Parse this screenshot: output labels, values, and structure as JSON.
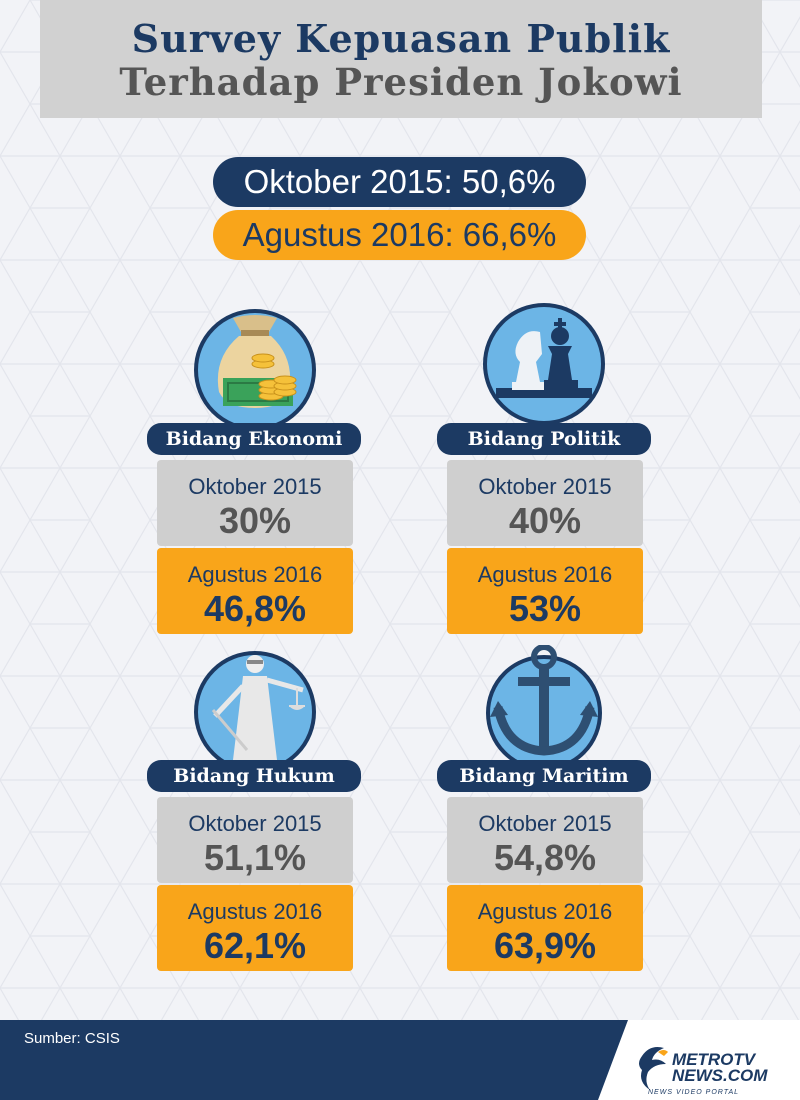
{
  "header": {
    "title_line1": "Survey Kepuasan Publik",
    "title_line2": "Terhadap Presiden Jokowi"
  },
  "overall": {
    "oktober": "Oktober 2015: 50,6%",
    "agustus": "Agustus 2016: 66,6%"
  },
  "chart_data": {
    "type": "table",
    "title": "Survey Kepuasan Publik Terhadap Presiden Jokowi",
    "columns": [
      "Oktober 2015",
      "Agustus 2016"
    ],
    "overall": {
      "Oktober 2015": 50.6,
      "Agustus 2016": 66.6
    },
    "categories": [
      "Bidang Ekonomi",
      "Bidang Politik",
      "Bidang Hukum",
      "Bidang Maritim"
    ],
    "series": [
      {
        "name": "Oktober 2015",
        "values": [
          30,
          40,
          51.1,
          54.8
        ]
      },
      {
        "name": "Agustus 2016",
        "values": [
          46.8,
          53,
          62.1,
          63.9
        ]
      }
    ],
    "unit": "%"
  },
  "sectors": [
    {
      "label": "Bidang Ekonomi",
      "icon": "money-bag-icon",
      "oct_label": "Oktober 2015",
      "oct_value": "30%",
      "aug_label": "Agustus 2016",
      "aug_value": "46,8%"
    },
    {
      "label": "Bidang Politik",
      "icon": "chess-icon",
      "oct_label": "Oktober 2015",
      "oct_value": "40%",
      "aug_label": "Agustus 2016",
      "aug_value": "53%"
    },
    {
      "label": "Bidang Hukum",
      "icon": "lady-justice-icon",
      "oct_label": "Oktober 2015",
      "oct_value": "51,1%",
      "aug_label": "Agustus 2016",
      "aug_value": "62,1%"
    },
    {
      "label": "Bidang Maritim",
      "icon": "anchor-icon",
      "oct_label": "Oktober 2015",
      "oct_value": "54,8%",
      "aug_label": "Agustus 2016",
      "aug_value": "63,9%"
    }
  ],
  "footer": {
    "source": "Sumber: CSIS",
    "logo_line1": "METROTV",
    "logo_line2": "NEWS.COM",
    "logo_tagline": "NEWS VIDEO PORTAL"
  },
  "colors": {
    "navy": "#1c3a63",
    "orange": "#f9a51a",
    "grey": "#cfcfcf",
    "circle_blue": "#6cb5e6"
  }
}
